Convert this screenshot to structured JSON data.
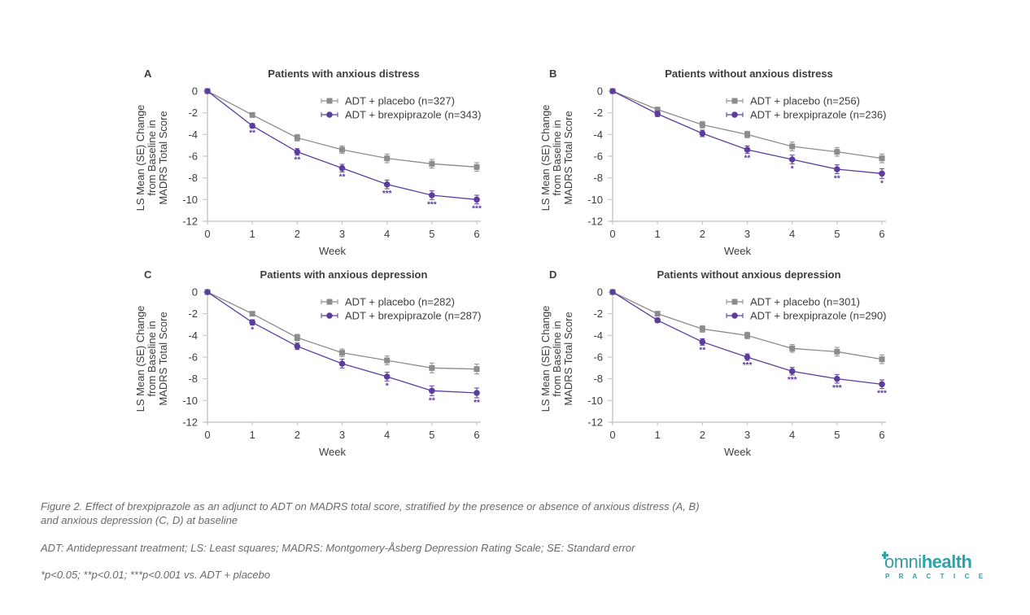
{
  "colors": {
    "placebo": "#8c8c8c",
    "brexpiprazole": "#5c3d9e",
    "axis": "#c8c8c8",
    "text": "#3d3d3d",
    "logo": "#2aa3ad"
  },
  "chart_data": [
    {
      "type": "line",
      "panel": "A",
      "title": "Patients with anxious distress",
      "xlabel": "Week",
      "ylabel": "LS Mean (SE) Change from Baseline in MADRS Total Score",
      "ylabel_lines": [
        "LS Mean (SE) Change",
        "from Baseline in",
        "MADRS Total Score"
      ],
      "x": [
        0,
        1,
        2,
        3,
        4,
        5,
        6
      ],
      "ylim": [
        -12,
        0
      ],
      "yticks": [
        0,
        -2,
        -4,
        -6,
        -8,
        -10,
        -12
      ],
      "legend_position": "top-right",
      "series": [
        {
          "name": "ADT + placebo (n=327)",
          "key": "placebo",
          "marker": "square",
          "values": [
            0,
            -2.2,
            -4.3,
            -5.4,
            -6.2,
            -6.7,
            -7.0
          ],
          "se": [
            0,
            0.2,
            0.3,
            0.35,
            0.4,
            0.4,
            0.4
          ]
        },
        {
          "name": "ADT + brexpiprazole (n=343)",
          "key": "brexpiprazole",
          "marker": "circle",
          "values": [
            0,
            -3.2,
            -5.6,
            -7.1,
            -8.6,
            -9.6,
            -10.0
          ],
          "se": [
            0,
            0.2,
            0.3,
            0.35,
            0.4,
            0.4,
            0.4
          ]
        }
      ],
      "significance": [
        "",
        "**",
        "**",
        "**",
        "***",
        "***",
        "***"
      ]
    },
    {
      "type": "line",
      "panel": "B",
      "title": "Patients without anxious distress",
      "xlabel": "Week",
      "ylabel": "LS Mean (SE) Change from Baseline in MADRS Total Score",
      "ylabel_lines": [
        "LS Mean (SE) Change",
        "from Baseline in",
        "MADRS Total Score"
      ],
      "x": [
        0,
        1,
        2,
        3,
        4,
        5,
        6
      ],
      "ylim": [
        -12,
        0
      ],
      "yticks": [
        0,
        -2,
        -4,
        -6,
        -8,
        -10,
        -12
      ],
      "legend_position": "top-right",
      "series": [
        {
          "name": "ADT + placebo (n=256)",
          "key": "placebo",
          "marker": "square",
          "values": [
            0,
            -1.7,
            -3.1,
            -4.0,
            -5.1,
            -5.6,
            -6.2
          ],
          "se": [
            0,
            0.2,
            0.3,
            0.3,
            0.4,
            0.4,
            0.4
          ]
        },
        {
          "name": "ADT + brexpiprazole (n=236)",
          "key": "brexpiprazole",
          "marker": "circle",
          "values": [
            0,
            -2.1,
            -3.9,
            -5.4,
            -6.3,
            -7.2,
            -7.6
          ],
          "se": [
            0,
            0.25,
            0.3,
            0.35,
            0.4,
            0.4,
            0.45
          ]
        }
      ],
      "significance": [
        "",
        "",
        "",
        "**",
        "*",
        "**",
        "*"
      ]
    },
    {
      "type": "line",
      "panel": "C",
      "title": "Patients with anxious depression",
      "xlabel": "Week",
      "ylabel": "LS Mean (SE) Change from Baseline in MADRS Total Score",
      "ylabel_lines": [
        "LS Mean (SE) Change",
        "from Baseline in",
        "MADRS Total Score"
      ],
      "x": [
        0,
        1,
        2,
        3,
        4,
        5,
        6
      ],
      "ylim": [
        -12,
        0
      ],
      "yticks": [
        0,
        -2,
        -4,
        -6,
        -8,
        -10,
        -12
      ],
      "legend_position": "top-right",
      "series": [
        {
          "name": "ADT + placebo (n=282)",
          "key": "placebo",
          "marker": "square",
          "values": [
            0,
            -2.0,
            -4.2,
            -5.6,
            -6.3,
            -7.0,
            -7.1
          ],
          "se": [
            0,
            0.2,
            0.3,
            0.35,
            0.4,
            0.45,
            0.45
          ]
        },
        {
          "name": "ADT + brexpiprazole (n=287)",
          "key": "brexpiprazole",
          "marker": "circle",
          "values": [
            0,
            -2.8,
            -5.0,
            -6.6,
            -7.8,
            -9.1,
            -9.3
          ],
          "se": [
            0,
            0.25,
            0.3,
            0.4,
            0.4,
            0.45,
            0.45
          ]
        }
      ],
      "significance": [
        "",
        "*",
        "",
        "",
        "*",
        "**",
        "**"
      ]
    },
    {
      "type": "line",
      "panel": "D",
      "title": "Patients without anxious depression",
      "xlabel": "Week",
      "ylabel": "LS Mean (SE) Change from Baseline in MADRS Total Score",
      "ylabel_lines": [
        "LS Mean (SE) Change",
        "from Baseline in",
        "MADRS Total Score"
      ],
      "x": [
        0,
        1,
        2,
        3,
        4,
        5,
        6
      ],
      "ylim": [
        -12,
        0
      ],
      "yticks": [
        0,
        -2,
        -4,
        -6,
        -8,
        -10,
        -12
      ],
      "legend_position": "top-right",
      "series": [
        {
          "name": "ADT + placebo (n=301)",
          "key": "placebo",
          "marker": "square",
          "values": [
            0,
            -2.0,
            -3.4,
            -4.0,
            -5.2,
            -5.5,
            -6.2
          ],
          "se": [
            0,
            0.2,
            0.3,
            0.3,
            0.35,
            0.4,
            0.4
          ]
        },
        {
          "name": "ADT + brexpiprazole (n=290)",
          "key": "brexpiprazole",
          "marker": "circle",
          "values": [
            0,
            -2.6,
            -4.6,
            -6.0,
            -7.3,
            -8.0,
            -8.5
          ],
          "se": [
            0,
            0.2,
            0.3,
            0.3,
            0.35,
            0.4,
            0.4
          ]
        }
      ],
      "significance": [
        "",
        "",
        "**",
        "***",
        "***",
        "***",
        "***"
      ]
    }
  ],
  "captions": {
    "figure": "Figure 2. Effect of brexpiprazole as an adjunct to ADT on MADRS total score, stratified by the presence or absence of anxious distress (A, B)",
    "figure_line2": "and anxious depression (C, D) at baseline",
    "abbreviations": "ADT: Antidepressant treatment; LS: Least squares; MADRS: Montgomery-Åsberg Depression Rating Scale; SE: Standard error",
    "significance": "*p<0.05; **p<0.01; ***p<0.001 vs. ADT + placebo"
  },
  "logo": {
    "brand_prefix": "omni",
    "brand_suffix": "health",
    "tagline": "P R A C T I C E"
  }
}
